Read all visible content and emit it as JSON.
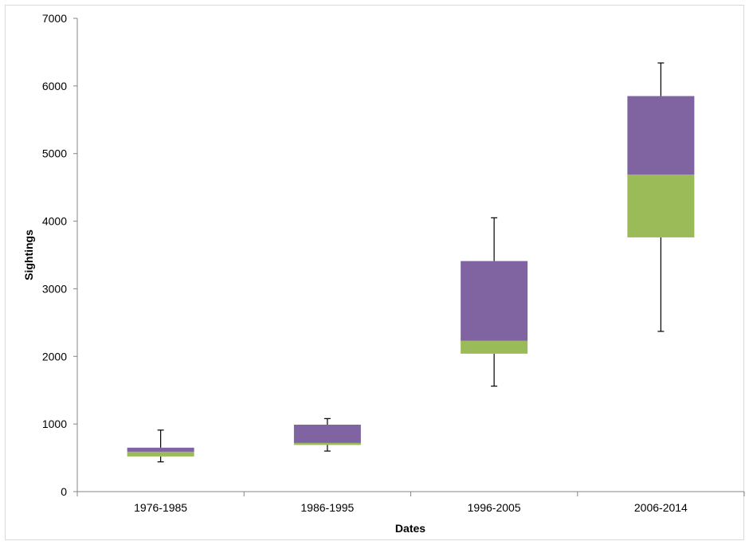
{
  "chart_data": {
    "type": "boxplot",
    "title": "",
    "xlabel": "Dates",
    "ylabel": "Sightings",
    "ylim": [
      0,
      7000
    ],
    "yticks": [
      0,
      1000,
      2000,
      3000,
      4000,
      5000,
      6000,
      7000
    ],
    "categories": [
      "1976-1985",
      "1986-1995",
      "1996-2005",
      "2006-2014"
    ],
    "series": [
      {
        "values": [
          {
            "min": 440,
            "q1": 520,
            "median": 590,
            "q3": 650,
            "max": 910
          },
          {
            "min": 600,
            "q1": 690,
            "median": 720,
            "q3": 990,
            "max": 1080
          },
          {
            "min": 1560,
            "q1": 2040,
            "median": 2230,
            "q3": 3410,
            "max": 4050
          },
          {
            "min": 2370,
            "q1": 3760,
            "median": 4690,
            "q3": 5850,
            "max": 6340
          }
        ]
      }
    ],
    "lower_box_color": "#9BBB59",
    "upper_box_color": "#8064A2",
    "whisker_color": "#000000",
    "grid": false,
    "legend": "none"
  }
}
